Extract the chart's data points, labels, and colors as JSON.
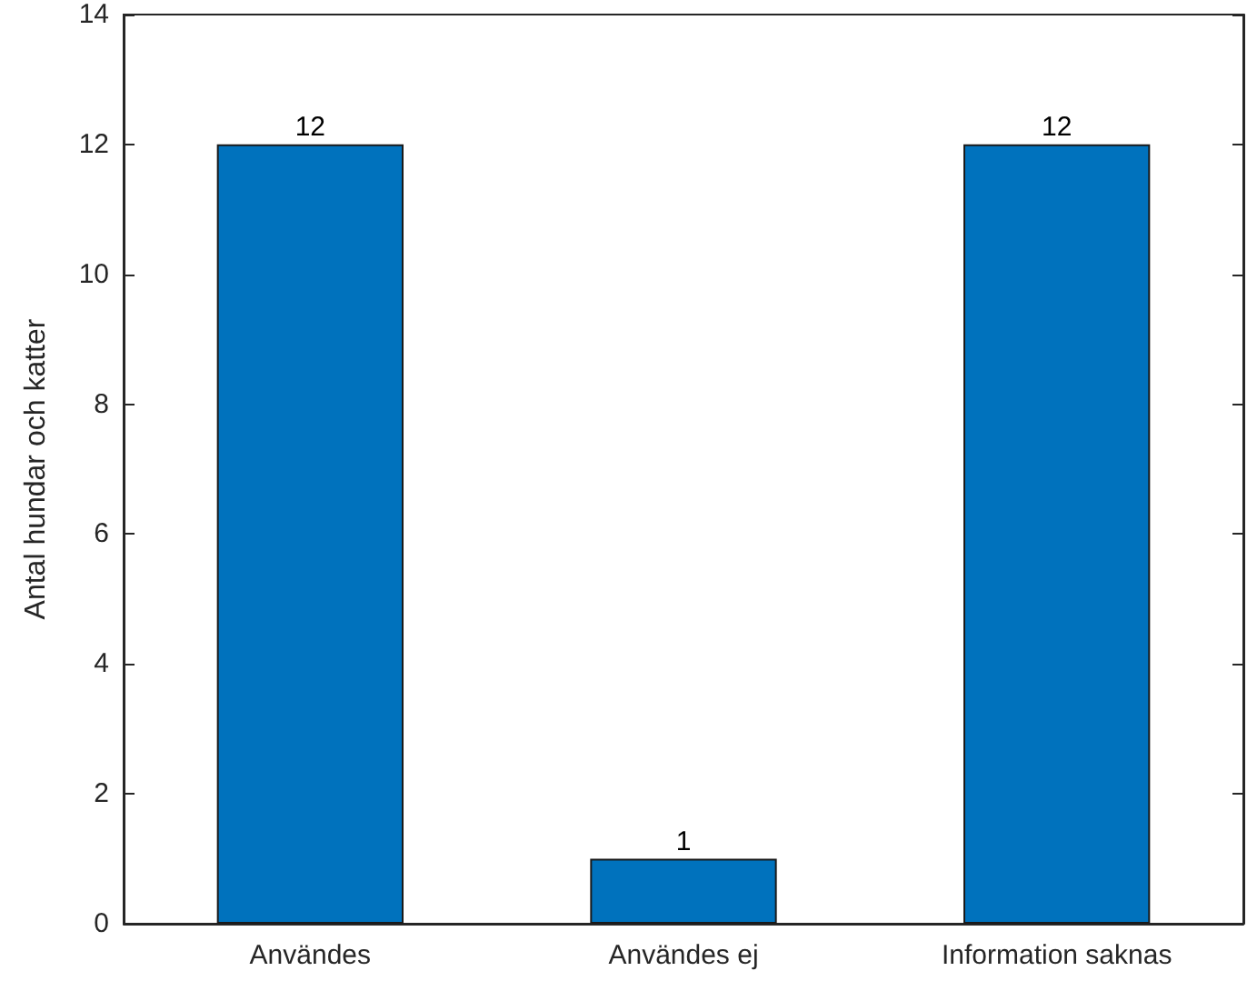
{
  "chart_data": {
    "type": "bar",
    "ylabel": "Antal hundar och katter",
    "categories": [
      "Användes",
      "Användes ej",
      "Information saknas"
    ],
    "values": [
      12,
      1,
      12
    ],
    "color": "#0072bd",
    "ylim": [
      0,
      14
    ],
    "yticks": [
      0,
      2,
      4,
      6,
      8,
      10,
      12,
      14
    ],
    "grid": false,
    "data_labels": true
  }
}
